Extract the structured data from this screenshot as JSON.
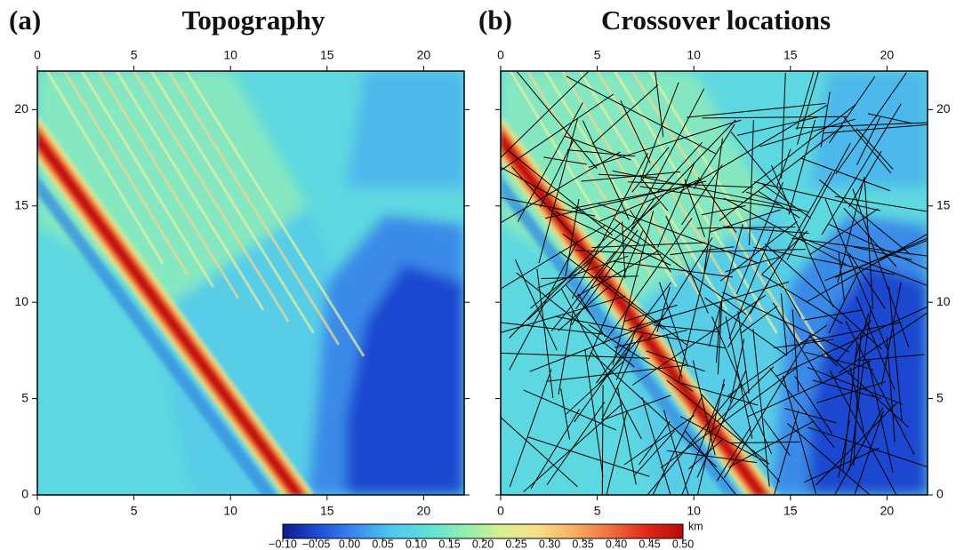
{
  "panels": [
    {
      "label": "(a)",
      "title": "Topography",
      "xlim": [
        0,
        22.1
      ],
      "ylim": [
        0,
        22
      ],
      "xticks": [
        0,
        5,
        10,
        15,
        20
      ],
      "yticks": [
        0,
        5,
        10,
        15,
        20
      ]
    },
    {
      "label": "(b)",
      "title": "Crossover locations",
      "xlim": [
        0,
        22.1
      ],
      "ylim": [
        0,
        22
      ],
      "xticks": [
        0,
        5,
        10,
        15,
        20
      ],
      "yticks": [
        0,
        5,
        10,
        15,
        20
      ]
    }
  ],
  "colorbar": {
    "unit": "km",
    "lim": [
      -0.1,
      0.5
    ],
    "colors": [
      "#0a1a8c",
      "#1e4fd8",
      "#3c8cf0",
      "#4fc8f0",
      "#5ee0d8",
      "#8ef0b0",
      "#d8f090",
      "#f8e088",
      "#f8b060",
      "#f07040",
      "#e02818",
      "#b80a0a"
    ],
    "ticks": [
      {
        "value": -0.1,
        "label": "−0.10"
      },
      {
        "value": -0.05,
        "label": "−0.05"
      },
      {
        "value": 0,
        "label": "0.00"
      },
      0.05,
      {
        "value": 0.1,
        "label": "0.10"
      },
      0.15,
      {
        "value": 0.2,
        "label": "0.20"
      },
      0.25,
      {
        "value": 0.3,
        "label": "0.30"
      },
      0.35,
      {
        "value": 0.4,
        "label": "0.40"
      },
      0.45,
      {
        "value": 0.5,
        "label": "0.50"
      }
    ]
  }
}
